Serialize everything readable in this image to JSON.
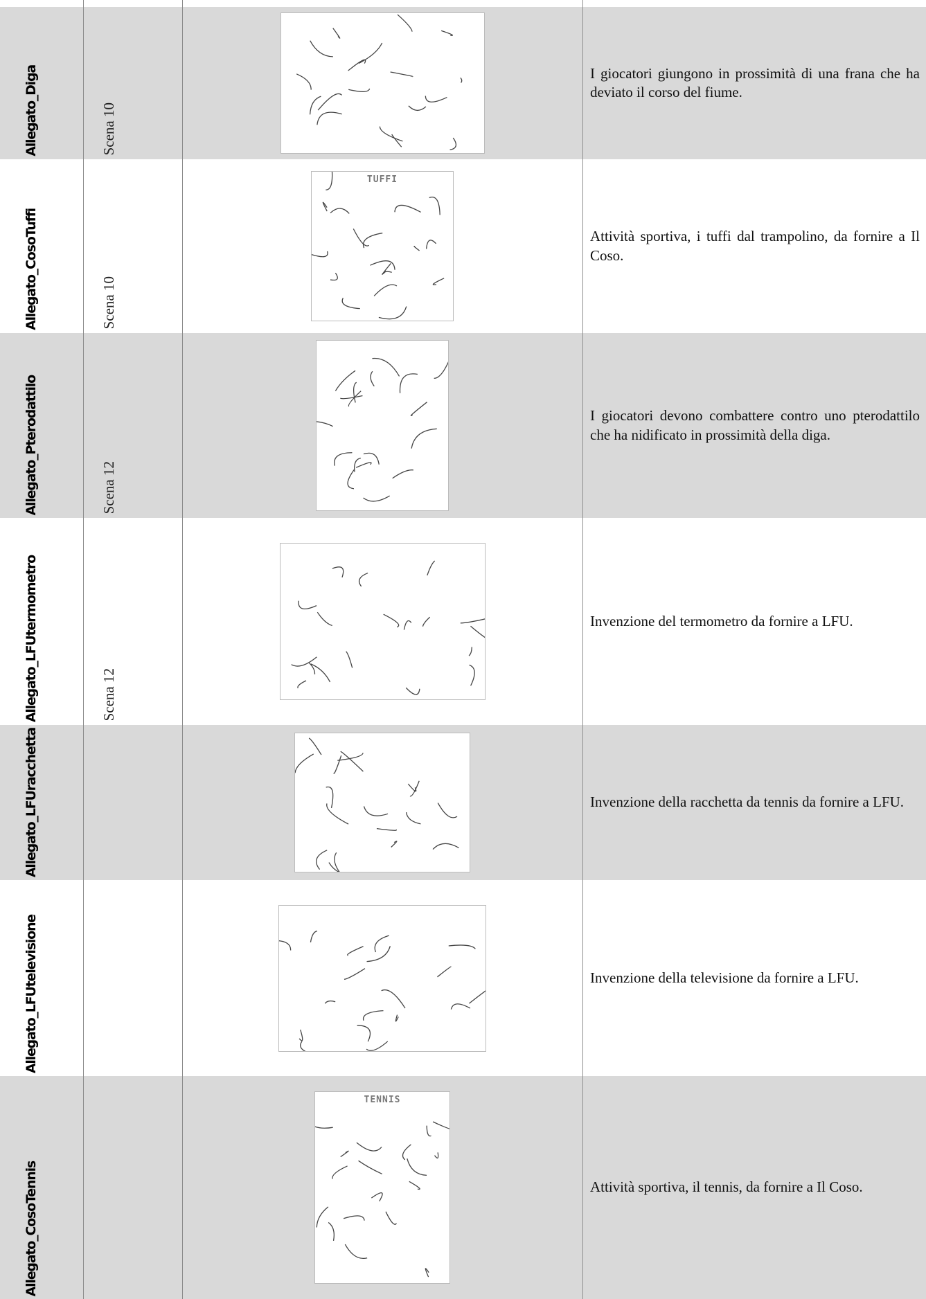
{
  "table": {
    "rows": [
      {
        "label": "Allegato_Diga",
        "scene": "Scena 10",
        "description": "I giocatori giungono in prossimità di una frana che ha deviato il corso del fiume."
      },
      {
        "label": "Allegato_CosoTuffi",
        "scene": "Scena 10",
        "caption": "TUFFI",
        "description": "Attività sportiva, i tuffi dal trampolino, da fornire a Il Coso."
      },
      {
        "label": "Allegato_Pterodattilo",
        "scene": "Scena 12",
        "description": "I giocatori devono combattere contro uno pterodattilo che ha nidificato in prossimità della diga."
      },
      {
        "label": "Allegato_LFUtermometro",
        "scene": "Scena 12",
        "description": "Invenzione del termometro da fornire a LFU."
      },
      {
        "label": "Allegato_LFUracchetta",
        "description": "Invenzione della racchetta da tennis da fornire a LFU."
      },
      {
        "label": "Allegato_LFUtelevisione",
        "description": "Invenzione della televisione da fornire a LFU."
      },
      {
        "label": "Allegato_CosoTennis",
        "caption": "TENNIS",
        "description": "Attività sportiva, il tennis, da fornire a Il Coso."
      }
    ]
  }
}
